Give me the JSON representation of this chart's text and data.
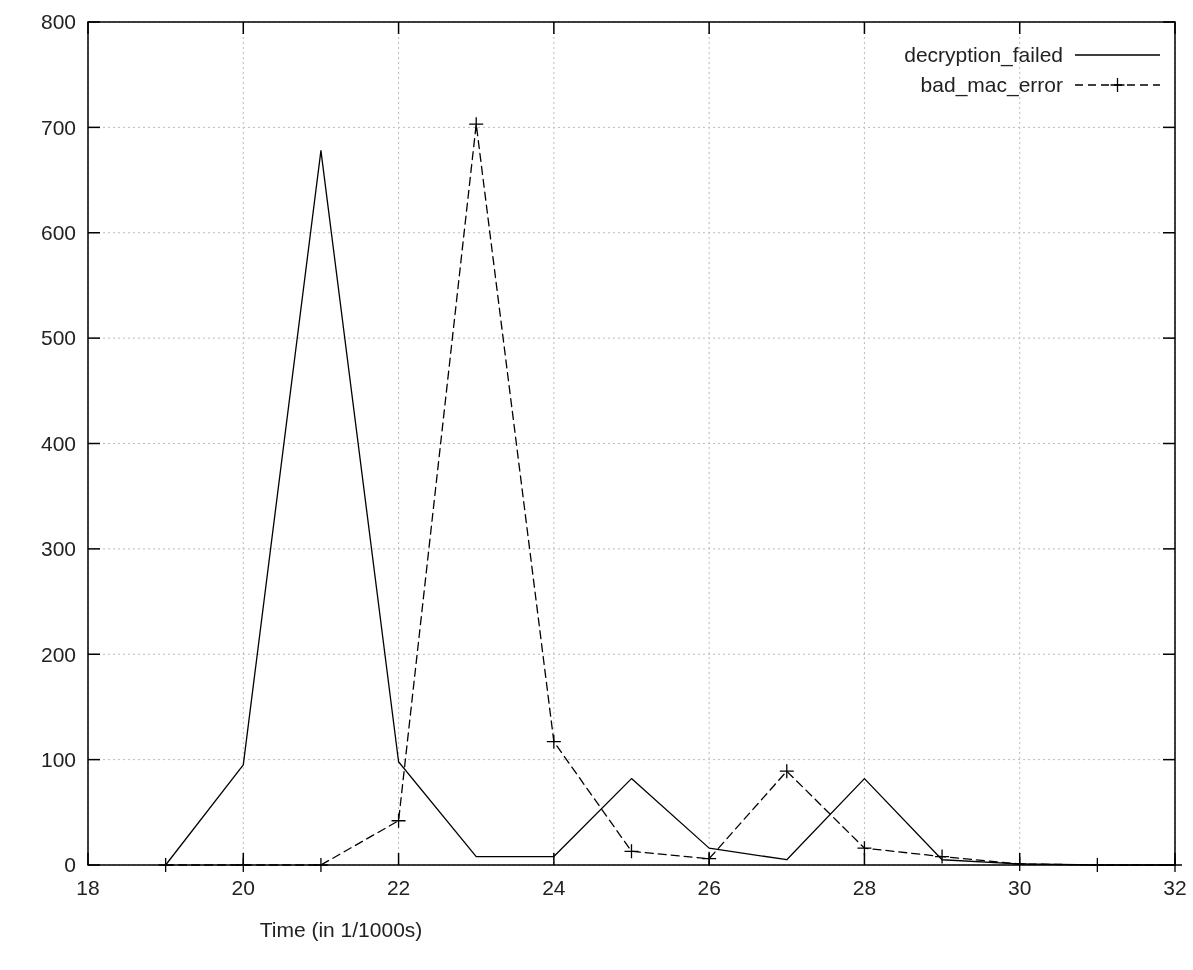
{
  "chart_data": {
    "type": "line",
    "xlabel": "Time (in 1/1000s)",
    "x": [
      19,
      20,
      21,
      22,
      23,
      24,
      25,
      26,
      27,
      28,
      29,
      30,
      31,
      32
    ],
    "series": [
      {
        "name": "decryption_failed",
        "color": "#000000",
        "line_style": "solid",
        "marker": "none",
        "values": [
          0,
          95,
          678,
          98,
          8,
          8,
          82,
          16,
          5,
          82,
          5,
          1,
          0,
          0
        ]
      },
      {
        "name": "bad_mac_error",
        "color": "#000000",
        "line_style": "dashed",
        "marker": "cross",
        "values": [
          0,
          0,
          0,
          42,
          703,
          117,
          13,
          6,
          89,
          16,
          8,
          1,
          0,
          0
        ]
      }
    ],
    "xlim": [
      18,
      32
    ],
    "xticks": [
      18,
      20,
      22,
      24,
      26,
      28,
      30,
      32
    ],
    "ylim": [
      0,
      800
    ],
    "yticks": [
      0,
      100,
      200,
      300,
      400,
      500,
      600,
      700,
      800
    ],
    "grid": true,
    "legend": "top right"
  }
}
